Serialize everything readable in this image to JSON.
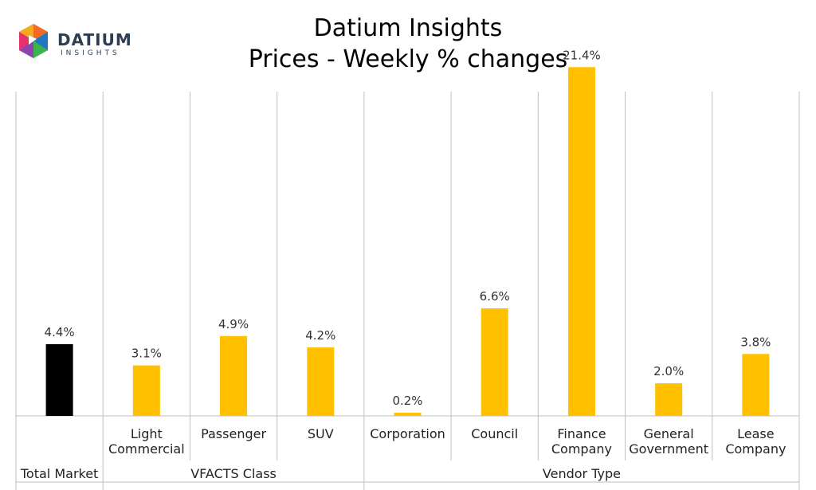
{
  "logo": {
    "name": "DATIUM",
    "sub": "INSIGHTS"
  },
  "chart_data": {
    "type": "bar",
    "title": "Datium Insights",
    "subtitle": "Prices - Weekly % changes",
    "ylim": [
      0,
      22
    ],
    "unit": "%",
    "grid": false,
    "legend": "none",
    "categories": [
      [
        "Total Market"
      ],
      [
        "Light",
        "Commercial"
      ],
      [
        "Passenger"
      ],
      [
        "SUV"
      ],
      [
        "Corporation"
      ],
      [
        "Council"
      ],
      [
        "Finance",
        "Company"
      ],
      [
        "General",
        "Government"
      ],
      [
        "Lease",
        "Company"
      ]
    ],
    "values": [
      4.4,
      3.1,
      4.9,
      4.2,
      0.2,
      6.6,
      21.4,
      2.0,
      3.8
    ],
    "value_labels": [
      "4.4%",
      "3.1%",
      "4.9%",
      "4.2%",
      "0.2%",
      "6.6%",
      "21.4%",
      "2.0%",
      "3.8%"
    ],
    "bar_colors": [
      "#000000",
      "#ffc000",
      "#ffc000",
      "#ffc000",
      "#ffc000",
      "#ffc000",
      "#ffc000",
      "#ffc000",
      "#ffc000"
    ],
    "groups": [
      {
        "label": "",
        "start": 0,
        "end": 0
      },
      {
        "label": "VFACTS Class",
        "start": 1,
        "end": 3
      },
      {
        "label": "Vendor Type",
        "start": 4,
        "end": 8
      }
    ],
    "group_bottom_labels": [
      "Total Market",
      "VFACTS Class",
      "Vendor Type"
    ]
  }
}
